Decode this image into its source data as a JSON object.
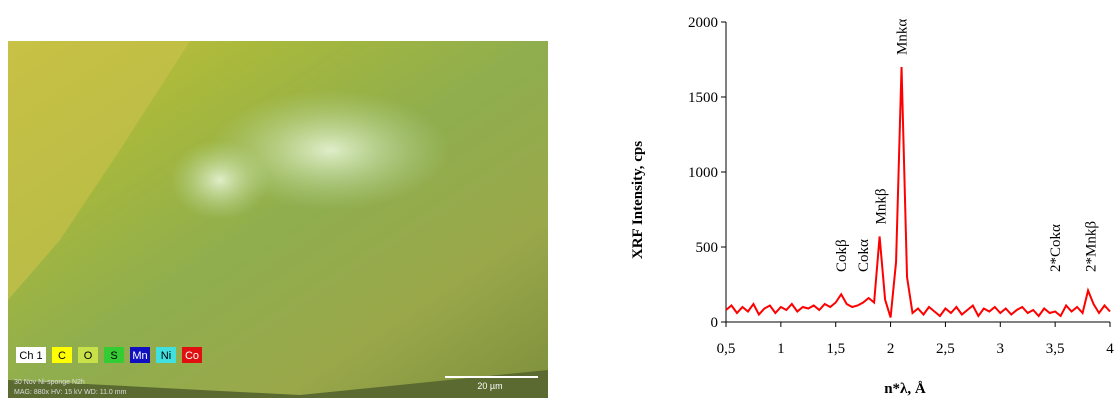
{
  "image": {
    "legend": [
      "Ch 1",
      "C",
      "O",
      "S",
      "Mn",
      "Ni",
      "Co"
    ],
    "scale_bar": "20 µm",
    "footer": [
      "30 Nov Ni-sponge N2h",
      "MAG: 880x HV: 15 kV WD: 11.0 mm"
    ]
  },
  "chart_data": {
    "type": "line",
    "xlabel": "n*λ, Å",
    "ylabel": "XRF Intensity, cps",
    "x": [
      0.5,
      0.55,
      0.6,
      0.65,
      0.7,
      0.75,
      0.8,
      0.85,
      0.9,
      0.95,
      1.0,
      1.05,
      1.1,
      1.15,
      1.2,
      1.25,
      1.3,
      1.35,
      1.4,
      1.45,
      1.5,
      1.55,
      1.6,
      1.65,
      1.7,
      1.75,
      1.8,
      1.85,
      1.9,
      1.95,
      2.0,
      2.05,
      2.1,
      2.15,
      2.2,
      2.25,
      2.3,
      2.35,
      2.4,
      2.45,
      2.5,
      2.55,
      2.6,
      2.65,
      2.7,
      2.75,
      2.8,
      2.85,
      2.9,
      2.95,
      3.0,
      3.05,
      3.1,
      3.15,
      3.2,
      3.25,
      3.3,
      3.35,
      3.4,
      3.45,
      3.5,
      3.55,
      3.6,
      3.65,
      3.7,
      3.75,
      3.8,
      3.85,
      3.9,
      3.95,
      4.0
    ],
    "series": [
      {
        "color": "#ff0000",
        "values": [
          80,
          110,
          60,
          100,
          70,
          120,
          50,
          90,
          110,
          60,
          100,
          80,
          120,
          70,
          100,
          90,
          110,
          80,
          120,
          100,
          130,
          185,
          120,
          100,
          110,
          130,
          160,
          130,
          570,
          150,
          30,
          400,
          1700,
          300,
          60,
          90,
          50,
          100,
          70,
          40,
          90,
          60,
          100,
          50,
          80,
          110,
          40,
          90,
          70,
          100,
          60,
          90,
          50,
          80,
          100,
          60,
          80,
          40,
          90,
          60,
          70,
          40,
          110,
          70,
          100,
          60,
          210,
          120,
          60,
          110,
          70
        ]
      }
    ],
    "xlim": [
      0.5,
      4
    ],
    "ylim": [
      0,
      2000
    ],
    "xticks": [
      {
        "value": 0.5,
        "label": "0,5"
      },
      1,
      {
        "value": 1.5,
        "label": "1,5"
      },
      2,
      {
        "value": 2.5,
        "label": "2,5"
      },
      3,
      {
        "value": 3.5,
        "label": "3,5"
      },
      4
    ],
    "yticks": [
      0,
      500,
      1000,
      1500,
      2000
    ],
    "annotations": [
      {
        "text": "Cokβ",
        "x": 1.55
      },
      {
        "text": "Cokα",
        "x": 1.75
      },
      {
        "text": "Mnkβ",
        "x": 1.91
      },
      {
        "text": "Mnkα",
        "x": 2.1
      },
      {
        "text": "2*Cokα",
        "x": 3.5
      },
      {
        "text": "2*Mnkβ",
        "x": 3.82
      }
    ]
  }
}
